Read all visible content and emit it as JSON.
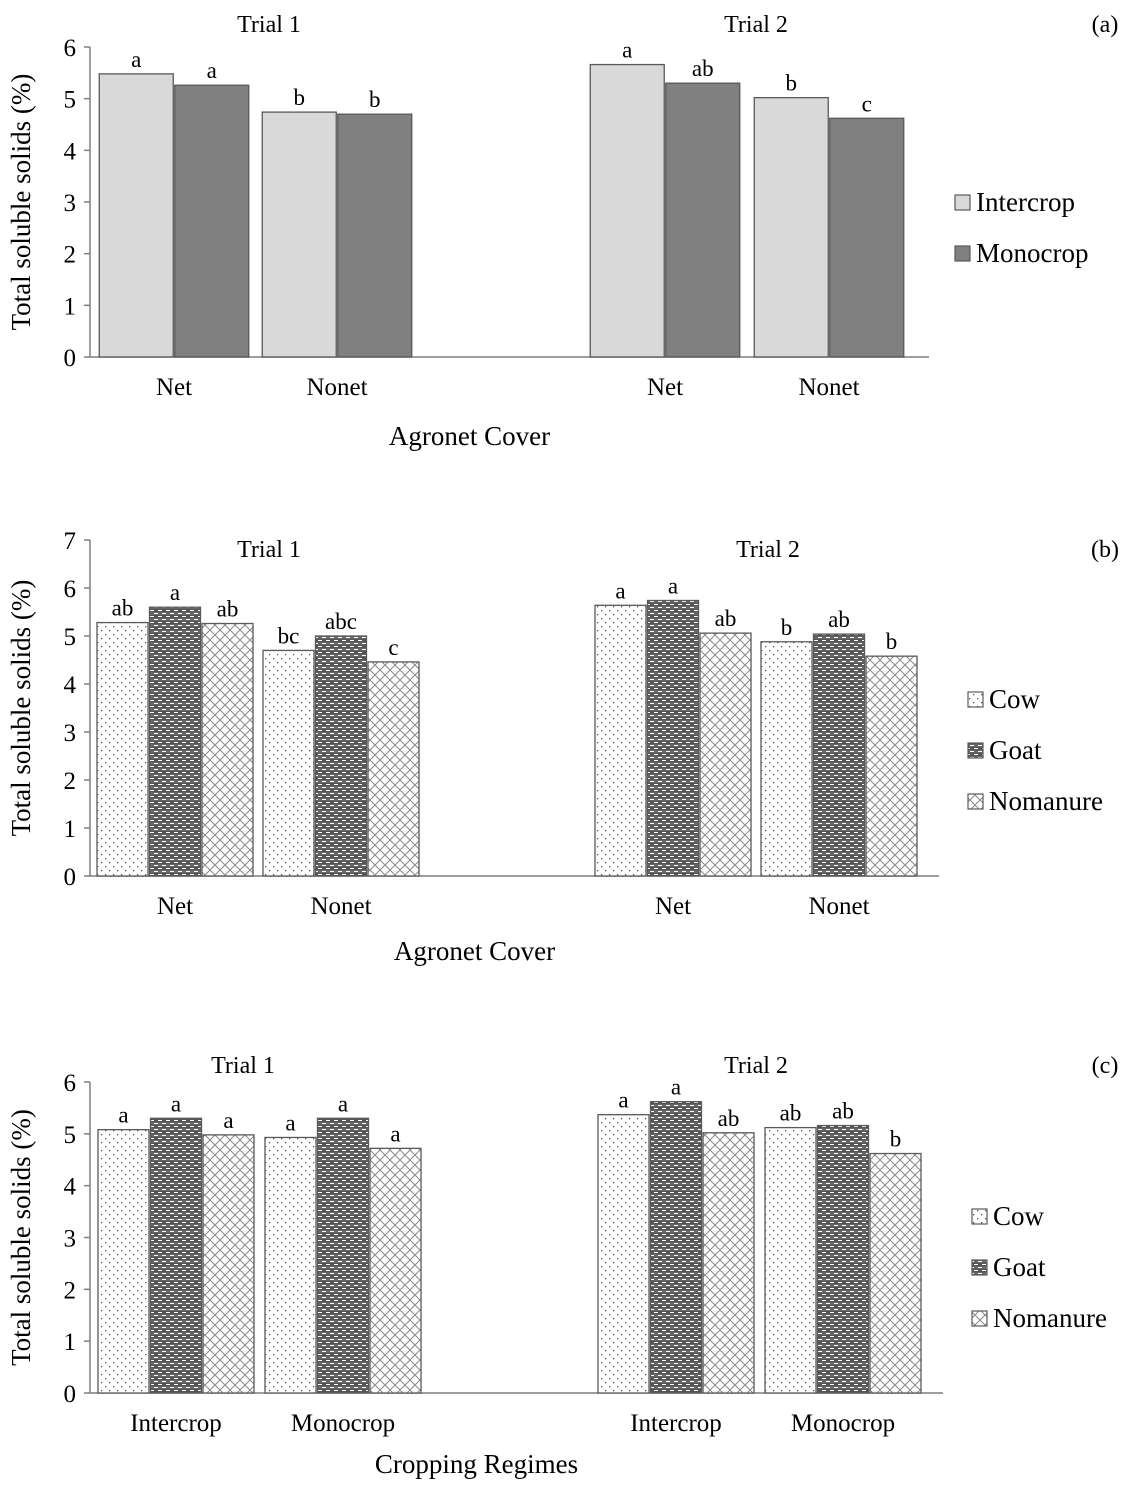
{
  "chart_data": [
    {
      "panel_label": "(a)",
      "type": "bar",
      "ylabel": "Total soluble solids (%)",
      "xlabel": "Agronet Cover",
      "ylim": [
        0,
        6
      ],
      "yticks": [
        0,
        1,
        2,
        3,
        4,
        5,
        6
      ],
      "legend_position": "right",
      "groups": [
        {
          "trial": "Trial 1",
          "categories": [
            "Net",
            "Nonet"
          ],
          "series": [
            {
              "name": "Intercrop",
              "values": [
                5.48,
                4.74
              ],
              "letters": [
                "a",
                "b"
              ]
            },
            {
              "name": "Monocrop",
              "values": [
                5.26,
                4.7
              ],
              "letters": [
                "a",
                "b"
              ]
            }
          ]
        },
        {
          "trial": "Trial 2",
          "categories": [
            "Net",
            "Nonet"
          ],
          "series": [
            {
              "name": "Intercrop",
              "values": [
                5.66,
                5.02
              ],
              "letters": [
                "a",
                "b"
              ]
            },
            {
              "name": "Monocrop",
              "values": [
                5.3,
                4.62
              ],
              "letters": [
                "ab",
                "c"
              ]
            }
          ]
        }
      ]
    },
    {
      "panel_label": "(b)",
      "type": "bar",
      "ylabel": "Total soluble solids (%)",
      "xlabel": "Agronet Cover",
      "ylim": [
        0,
        7
      ],
      "yticks": [
        0,
        1,
        2,
        3,
        4,
        5,
        6,
        7
      ],
      "legend_position": "right",
      "groups": [
        {
          "trial": "Trial 1",
          "categories": [
            "Net",
            "Nonet"
          ],
          "series": [
            {
              "name": "Cow",
              "values": [
                5.28,
                4.7
              ],
              "letters": [
                "ab",
                "bc"
              ]
            },
            {
              "name": "Goat",
              "values": [
                5.6,
                5.0
              ],
              "letters": [
                "a",
                "abc"
              ]
            },
            {
              "name": "Nomanure",
              "values": [
                5.26,
                4.46
              ],
              "letters": [
                "ab",
                "c"
              ]
            }
          ]
        },
        {
          "trial": "Trial 2",
          "categories": [
            "Net",
            "Nonet"
          ],
          "series": [
            {
              "name": "Cow",
              "values": [
                5.64,
                4.88
              ],
              "letters": [
                "a",
                "b"
              ]
            },
            {
              "name": "Goat",
              "values": [
                5.74,
                5.04
              ],
              "letters": [
                "a",
                "ab"
              ]
            },
            {
              "name": "Nomanure",
              "values": [
                5.06,
                4.58
              ],
              "letters": [
                "ab",
                "b"
              ]
            }
          ]
        }
      ]
    },
    {
      "panel_label": "(c)",
      "type": "bar",
      "ylabel": "Total soluble solids (%)",
      "xlabel": "Cropping Regimes",
      "ylim": [
        0,
        6
      ],
      "yticks": [
        0,
        1,
        2,
        3,
        4,
        5,
        6
      ],
      "legend_position": "right",
      "groups": [
        {
          "trial": "Trial 1",
          "categories": [
            "Intercrop",
            "Monocrop"
          ],
          "series": [
            {
              "name": "Cow",
              "values": [
                5.08,
                4.93
              ],
              "letters": [
                "a",
                "a"
              ]
            },
            {
              "name": "Goat",
              "values": [
                5.3,
                5.3
              ],
              "letters": [
                "a",
                "a"
              ]
            },
            {
              "name": "Nomanure",
              "values": [
                4.98,
                4.72
              ],
              "letters": [
                "a",
                "a"
              ]
            }
          ]
        },
        {
          "trial": "Trial 2",
          "categories": [
            "Intercrop",
            "Monocrop"
          ],
          "series": [
            {
              "name": "Cow",
              "values": [
                5.37,
                5.12
              ],
              "letters": [
                "a",
                "ab"
              ]
            },
            {
              "name": "Goat",
              "values": [
                5.62,
                5.16
              ],
              "letters": [
                "a",
                "ab"
              ]
            },
            {
              "name": "Nomanure",
              "values": [
                5.02,
                4.62
              ],
              "letters": [
                "ab",
                "b"
              ]
            }
          ]
        }
      ]
    }
  ],
  "series_styles": {
    "Intercrop": {
      "fill": "#d9d9d9",
      "pattern": "none"
    },
    "Monocrop": {
      "fill": "#808080",
      "pattern": "none"
    },
    "Cow": {
      "fill": "#ffffff",
      "pattern": "dots"
    },
    "Goat": {
      "fill": "#666666",
      "pattern": "bricks"
    },
    "Nomanure": {
      "fill": "#ffffff",
      "pattern": "diamonds"
    }
  }
}
